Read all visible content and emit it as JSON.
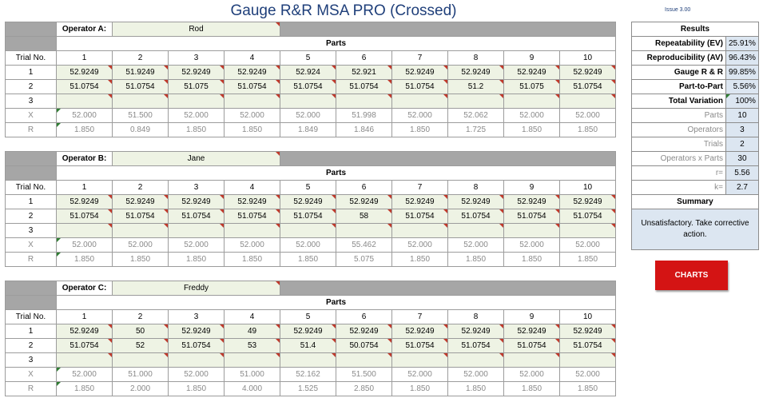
{
  "title": "Gauge R&R MSA PRO (Crossed)",
  "issue": "Issue 3.00",
  "labels": {
    "parts": "Parts",
    "trial_no": "Trial No.",
    "x": "X",
    "r": "R",
    "t3": "3"
  },
  "part_numbers": [
    "1",
    "2",
    "3",
    "4",
    "5",
    "6",
    "7",
    "8",
    "9",
    "10"
  ],
  "operators": [
    {
      "label": "Operator A:",
      "name": "Rod",
      "trial1": [
        "52.9249",
        "51.9249",
        "52.9249",
        "52.9249",
        "52.924",
        "52.921",
        "52.9249",
        "52.9249",
        "52.9249",
        "52.9249"
      ],
      "trial2": [
        "51.0754",
        "51.0754",
        "51.075",
        "51.0754",
        "51.0754",
        "51.0754",
        "51.0754",
        "51.2",
        "51.075",
        "51.0754"
      ],
      "x": [
        "52.000",
        "51.500",
        "52.000",
        "52.000",
        "52.000",
        "51.998",
        "52.000",
        "52.062",
        "52.000",
        "52.000"
      ],
      "r": [
        "1.850",
        "0.849",
        "1.850",
        "1.850",
        "1.849",
        "1.846",
        "1.850",
        "1.725",
        "1.850",
        "1.850"
      ]
    },
    {
      "label": "Operator B:",
      "name": "Jane",
      "trial1": [
        "52.9249",
        "52.9249",
        "52.9249",
        "52.9249",
        "52.9249",
        "52.9249",
        "52.9249",
        "52.9249",
        "52.9249",
        "52.9249"
      ],
      "trial2": [
        "51.0754",
        "51.0754",
        "51.0754",
        "51.0754",
        "51.0754",
        "58",
        "51.0754",
        "51.0754",
        "51.0754",
        "51.0754"
      ],
      "x": [
        "52.000",
        "52.000",
        "52.000",
        "52.000",
        "52.000",
        "55.462",
        "52.000",
        "52.000",
        "52.000",
        "52.000"
      ],
      "r": [
        "1.850",
        "1.850",
        "1.850",
        "1.850",
        "1.850",
        "5.075",
        "1.850",
        "1.850",
        "1.850",
        "1.850"
      ]
    },
    {
      "label": "Operator C:",
      "name": "Freddy",
      "trial1": [
        "52.9249",
        "50",
        "52.9249",
        "49",
        "52.9249",
        "52.9249",
        "52.9249",
        "52.9249",
        "52.9249",
        "52.9249"
      ],
      "trial2": [
        "51.0754",
        "52",
        "51.0754",
        "53",
        "51.4",
        "50.0754",
        "51.0754",
        "51.0754",
        "51.0754",
        "51.0754"
      ],
      "x": [
        "52.000",
        "51.000",
        "52.000",
        "51.000",
        "52.162",
        "51.500",
        "52.000",
        "52.000",
        "52.000",
        "52.000"
      ],
      "r": [
        "1.850",
        "2.000",
        "1.850",
        "4.000",
        "1.525",
        "2.850",
        "1.850",
        "1.850",
        "1.850",
        "1.850"
      ]
    }
  ],
  "results": {
    "heading": "Results",
    "rows": [
      {
        "label": "Repeatability (EV)",
        "value": "25.91%"
      },
      {
        "label": "Reproducibility (AV)",
        "value": "96.43%"
      },
      {
        "label": "Gauge R & R",
        "value": "99.85%"
      },
      {
        "label": "Part-to-Part",
        "value": "5.56%"
      },
      {
        "label": "Total Variation",
        "value": "100%"
      }
    ],
    "stats": [
      {
        "label": "Parts",
        "value": "10"
      },
      {
        "label": "Operators",
        "value": "3"
      },
      {
        "label": "Trials",
        "value": "2"
      },
      {
        "label": "Operators x Parts",
        "value": "30"
      },
      {
        "label": "r=",
        "value": "5.56"
      },
      {
        "label": "k=",
        "value": "2.7"
      }
    ],
    "summary_heading": "Summary",
    "summary_text": "Unsatisfactory. Take corrective action."
  },
  "charts_button": "CHARTS"
}
